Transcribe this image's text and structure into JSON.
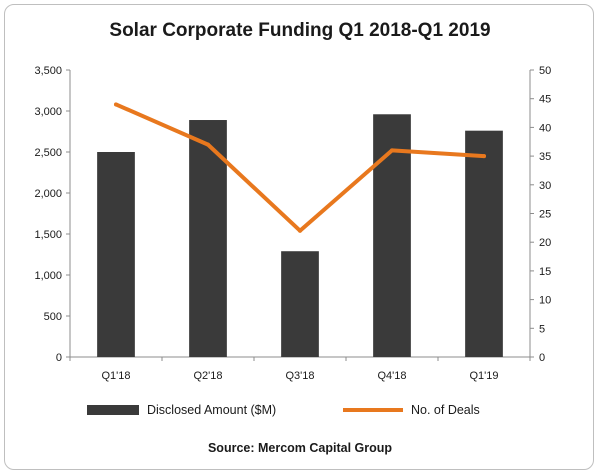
{
  "chart_data": {
    "type": "bar",
    "title": "Solar Corporate Funding Q1 2018-Q1 2019",
    "categories": [
      "Q1'18",
      "Q2'18",
      "Q3'18",
      "Q4'18",
      "Q1'19"
    ],
    "series": [
      {
        "name": "Disclosed Amount ($M)",
        "type": "bar",
        "axis": "left",
        "color": "#3a3a3a",
        "values": [
          2500,
          2890,
          1290,
          2960,
          2760
        ]
      },
      {
        "name": "No. of Deals",
        "type": "line",
        "axis": "right",
        "color": "#e8781e",
        "values": [
          44,
          37,
          22,
          36,
          35
        ]
      }
    ],
    "y_left": {
      "min": 0,
      "max": 3500,
      "step": 500,
      "tick_labels": [
        "0",
        "500",
        "1,000",
        "1,500",
        "2,000",
        "2,500",
        "3,000",
        "3,500"
      ]
    },
    "y_right": {
      "min": 0,
      "max": 50,
      "step": 5,
      "tick_labels": [
        "0",
        "5",
        "10",
        "15",
        "20",
        "25",
        "30",
        "35",
        "40",
        "45",
        "50"
      ]
    },
    "grid": false,
    "legend_position": "bottom",
    "source": "Source: Mercom Capital Group"
  }
}
